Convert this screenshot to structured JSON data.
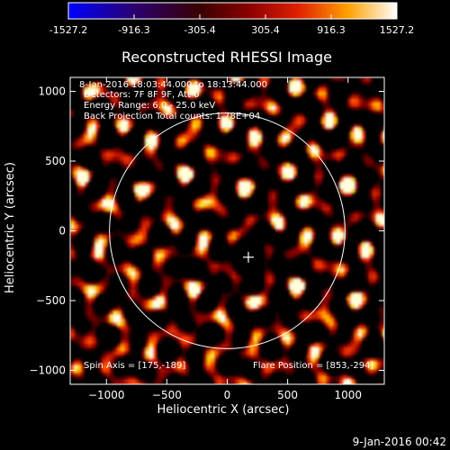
{
  "colorbar": {
    "ticks": [
      "-1527.2",
      "-916.3",
      "-305.4",
      "305.4",
      "916.3",
      "1527.2"
    ],
    "min": -1527.2,
    "max": 1527.2
  },
  "chart_data": {
    "type": "heatmap",
    "title": "Reconstructed RHESSI Image",
    "xlabel": "Heliocentric X (arcsec)",
    "ylabel": "Heliocentric Y (arcsec)",
    "xlim": [
      -1300,
      1300
    ],
    "ylim": [
      -1100,
      1100
    ],
    "xticks": [
      -1000,
      -500,
      0,
      500,
      1000
    ],
    "yticks": [
      -1000,
      -500,
      0,
      500,
      1000
    ],
    "annotations": [
      "8-Jan-2016 18:03:44.000 to 18:13:44.000",
      "Detectors: 7F 8F 9F, Att 0",
      "Energy Range: 6.0 - 25.0 keV",
      "Back Projection   Total counts: 1.78E+04"
    ],
    "footer": {
      "spin_axis": "Spin Axis = [175,-189]",
      "flare_position": "Flare Position = [853,-294]"
    },
    "solar_disk": {
      "center": [
        0,
        0
      ],
      "radius": 975
    },
    "spin_axis_marker": [
      175,
      -189
    ],
    "colormap": "hot"
  },
  "timestamp": "9-Jan-2016 00:42"
}
